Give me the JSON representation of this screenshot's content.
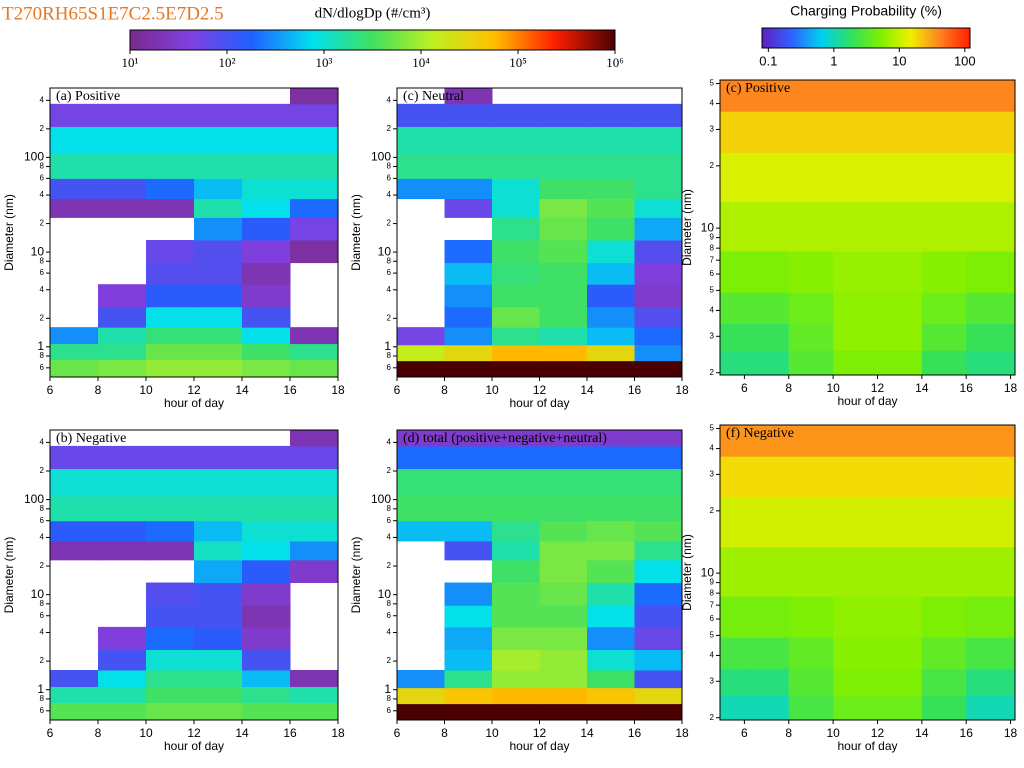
{
  "header": {
    "title": "T270RH65S1E7C2.5E7D2.5"
  },
  "chart_data": [
    {
      "type": "colorbar",
      "title": "dN/dlogDp (#/cm³)",
      "log": true,
      "zlim": [
        10,
        1000000
      ],
      "zticks": [
        {
          "value": 10,
          "label": "10¹"
        },
        {
          "value": 100,
          "label": "10²"
        },
        {
          "value": 1000,
          "label": "10³"
        },
        {
          "value": 10000,
          "label": "10⁴"
        },
        {
          "value": 100000,
          "label": "10⁵"
        },
        {
          "value": 1000000,
          "label": "10⁶"
        }
      ],
      "colors": [
        "#7a2a8a",
        "#8040e0",
        "#2060ff",
        "#00e0f0",
        "#40e060",
        "#c0f020",
        "#ffc000",
        "#ff2000",
        "#4a0000"
      ]
    },
    {
      "type": "colorbar",
      "title": "Charging Probability (%)",
      "log": true,
      "zlim": [
        0.08,
        120
      ],
      "zticks": [
        0.1,
        1,
        10,
        100
      ],
      "colors": [
        "#6020c0",
        "#3060ff",
        "#00d0f0",
        "#30e060",
        "#80f000",
        "#f0f000",
        "#ff8020",
        "#ff2000"
      ]
    },
    {
      "type": "heatmap",
      "label": "(a) Positive",
      "xlabel": "hour of day",
      "ylabel": "Diameter (nm)",
      "ylog": true,
      "xlim": [
        6,
        18
      ],
      "xticks": [
        6,
        8,
        10,
        12,
        14,
        16,
        18
      ],
      "ylim": [
        0.48,
        540
      ],
      "yticks": [
        {
          "value": 0.6,
          "label": "6"
        },
        {
          "value": 0.8,
          "label": "8"
        },
        1,
        2,
        4,
        6,
        8,
        10,
        {
          "value": 20,
          "label": "2"
        },
        {
          "value": 40,
          "label": "4"
        },
        {
          "value": 60,
          "label": "6"
        },
        {
          "value": 80,
          "label": "8"
        },
        100,
        {
          "value": 200,
          "label": "2"
        },
        {
          "value": 400,
          "label": "4"
        }
      ],
      "zlim": [
        10,
        1000000
      ],
      "colors": [
        "#7a2a8a",
        "#8040e0",
        "#2060ff",
        "#00e0f0",
        "#40e060",
        "#c0f020",
        "#ffc000",
        "#ff2000",
        "#4a0000"
      ],
      "x": [
        7,
        9,
        11,
        13,
        15,
        17
      ],
      "y": [
        0.6,
        0.9,
        1.3,
        2,
        3.5,
        6,
        10,
        18,
        30,
        45,
        80,
        150,
        300,
        450
      ],
      "z": [
        [
          5000,
          6000,
          8000,
          8000,
          6000,
          5000
        ],
        [
          2000,
          2000,
          5000,
          5000,
          3000,
          2000
        ],
        [
          300,
          1500,
          2500,
          2500,
          800,
          20
        ],
        [
          null,
          100,
          800,
          800,
          100,
          null
        ],
        [
          null,
          40,
          150,
          150,
          30,
          null
        ],
        [
          null,
          null,
          80,
          80,
          20,
          null
        ],
        [
          null,
          null,
          60,
          80,
          40,
          15
        ],
        [
          null,
          null,
          null,
          300,
          150,
          50
        ],
        [
          20,
          20,
          20,
          1500,
          800,
          200
        ],
        [
          100,
          100,
          200,
          500,
          1000,
          1000
        ],
        [
          1500,
          1500,
          1500,
          1500,
          1500,
          1500
        ],
        [
          800,
          800,
          800,
          800,
          800,
          800
        ],
        [
          50,
          50,
          50,
          50,
          50,
          50
        ],
        [
          null,
          null,
          null,
          null,
          null,
          15
        ]
      ]
    },
    {
      "type": "heatmap",
      "label": "(c) Neutral",
      "xlabel": "hour of day",
      "ylabel": "Diameter (nm)",
      "ylog": true,
      "xlim": [
        6,
        18
      ],
      "xticks": [
        6,
        8,
        10,
        12,
        14,
        16,
        18
      ],
      "ylim": [
        0.48,
        540
      ],
      "yticks": [
        {
          "value": 0.6,
          "label": "6"
        },
        {
          "value": 0.8,
          "label": "8"
        },
        1,
        2,
        4,
        6,
        8,
        10,
        {
          "value": 20,
          "label": "2"
        },
        {
          "value": 40,
          "label": "4"
        },
        {
          "value": 60,
          "label": "6"
        },
        {
          "value": 80,
          "label": "8"
        },
        100,
        {
          "value": 200,
          "label": "2"
        },
        {
          "value": 400,
          "label": "4"
        }
      ],
      "zlim": [
        10,
        1000000
      ],
      "colors": [
        "#7a2a8a",
        "#8040e0",
        "#2060ff",
        "#00e0f0",
        "#40e060",
        "#c0f020",
        "#ffc000",
        "#ff2000",
        "#4a0000"
      ],
      "x": [
        7,
        9,
        11,
        13,
        15,
        17
      ],
      "y": [
        0.6,
        0.85,
        1.3,
        2,
        3.5,
        6,
        10,
        18,
        30,
        45,
        80,
        150,
        300,
        450
      ],
      "z": [
        [
          1000000,
          1000000,
          1000000,
          1000000,
          1000000,
          1000000
        ],
        [
          15000,
          30000,
          60000,
          60000,
          30000,
          300
        ],
        [
          50,
          300,
          2000,
          1500,
          500,
          200
        ],
        [
          null,
          200,
          5000,
          3000,
          300,
          80
        ],
        [
          null,
          300,
          3000,
          3000,
          150,
          30
        ],
        [
          null,
          500,
          2500,
          3000,
          500,
          40
        ],
        [
          null,
          200,
          3000,
          4000,
          1000,
          80
        ],
        [
          null,
          null,
          2000,
          5000,
          3000,
          400
        ],
        [
          null,
          60,
          1000,
          6000,
          4000,
          1000
        ],
        [
          300,
          300,
          1000,
          3000,
          3000,
          2000
        ],
        [
          2000,
          2000,
          2000,
          2000,
          2000,
          2000
        ],
        [
          1500,
          1500,
          1500,
          1500,
          1500,
          1500
        ],
        [
          100,
          100,
          100,
          100,
          100,
          100
        ],
        [
          null,
          20,
          null,
          null,
          null,
          null
        ]
      ]
    },
    {
      "type": "heatmap",
      "label": "(b) Negative",
      "xlabel": "hour of day",
      "ylabel": "Diameter (nm)",
      "ylog": true,
      "xlim": [
        6,
        18
      ],
      "xticks": [
        6,
        8,
        10,
        12,
        14,
        16,
        18
      ],
      "ylim": [
        0.48,
        540
      ],
      "yticks": [
        {
          "value": 0.6,
          "label": "6"
        },
        {
          "value": 0.8,
          "label": "8"
        },
        1,
        2,
        4,
        6,
        8,
        10,
        {
          "value": 20,
          "label": "2"
        },
        {
          "value": 40,
          "label": "4"
        },
        {
          "value": 60,
          "label": "6"
        },
        {
          "value": 80,
          "label": "8"
        },
        100,
        {
          "value": 200,
          "label": "2"
        },
        {
          "value": 400,
          "label": "4"
        }
      ],
      "zlim": [
        10,
        1000000
      ],
      "colors": [
        "#7a2a8a",
        "#8040e0",
        "#2060ff",
        "#00e0f0",
        "#40e060",
        "#c0f020",
        "#ffc000",
        "#ff2000",
        "#4a0000"
      ],
      "x": [
        7,
        9,
        11,
        13,
        15,
        17
      ],
      "y": [
        0.6,
        0.9,
        1.3,
        2,
        3.5,
        6,
        10,
        18,
        30,
        45,
        80,
        150,
        300,
        450
      ],
      "z": [
        [
          4000,
          4000,
          5000,
          5000,
          4000,
          4000
        ],
        [
          1500,
          1500,
          3000,
          3000,
          2000,
          1500
        ],
        [
          100,
          800,
          2000,
          2000,
          500,
          20
        ],
        [
          null,
          100,
          1000,
          1000,
          100,
          null
        ],
        [
          null,
          40,
          200,
          150,
          30,
          null
        ],
        [
          null,
          null,
          100,
          100,
          20,
          null
        ],
        [
          null,
          null,
          80,
          100,
          30,
          null
        ],
        [
          null,
          null,
          null,
          400,
          150,
          30
        ],
        [
          20,
          20,
          20,
          1200,
          800,
          300
        ],
        [
          150,
          150,
          200,
          500,
          1000,
          1000
        ],
        [
          1500,
          1500,
          1500,
          1500,
          1500,
          1500
        ],
        [
          1000,
          1000,
          1000,
          1000,
          1000,
          1000
        ],
        [
          60,
          60,
          60,
          60,
          60,
          60
        ],
        [
          null,
          null,
          null,
          null,
          null,
          20
        ]
      ]
    },
    {
      "type": "heatmap",
      "label": "(d) total (positive+negative+neutral)",
      "xlabel": "hour of day",
      "ylabel": "Diameter (nm)",
      "ylog": true,
      "xlim": [
        6,
        18
      ],
      "xticks": [
        6,
        8,
        10,
        12,
        14,
        16,
        18
      ],
      "ylim": [
        0.48,
        540
      ],
      "yticks": [
        {
          "value": 0.6,
          "label": "6"
        },
        {
          "value": 0.8,
          "label": "8"
        },
        1,
        2,
        4,
        6,
        8,
        10,
        {
          "value": 20,
          "label": "2"
        },
        {
          "value": 40,
          "label": "4"
        },
        {
          "value": 60,
          "label": "6"
        },
        {
          "value": 80,
          "label": "8"
        },
        100,
        {
          "value": 200,
          "label": "2"
        },
        {
          "value": 400,
          "label": "4"
        }
      ],
      "zlim": [
        10,
        1000000
      ],
      "colors": [
        "#7a2a8a",
        "#8040e0",
        "#2060ff",
        "#00e0f0",
        "#40e060",
        "#c0f020",
        "#ffc000",
        "#ff2000",
        "#4a0000"
      ],
      "x": [
        7,
        9,
        11,
        13,
        15,
        17
      ],
      "y": [
        0.6,
        0.85,
        1.3,
        2,
        3.5,
        6,
        10,
        18,
        30,
        45,
        80,
        150,
        300,
        450
      ],
      "z": [
        [
          1000000,
          1000000,
          1000000,
          1000000,
          1000000,
          1000000
        ],
        [
          30000,
          50000,
          60000,
          60000,
          50000,
          30000
        ],
        [
          300,
          2000,
          8000,
          8000,
          3000,
          100
        ],
        [
          null,
          500,
          10000,
          8000,
          1000,
          500
        ],
        [
          null,
          400,
          6000,
          6000,
          300,
          60
        ],
        [
          null,
          800,
          4000,
          4000,
          800,
          100
        ],
        [
          null,
          300,
          4000,
          5000,
          1500,
          200
        ],
        [
          null,
          null,
          3000,
          6000,
          4000,
          800
        ],
        [
          null,
          100,
          1500,
          6000,
          6000,
          2000
        ],
        [
          500,
          500,
          2000,
          4000,
          5000,
          4000
        ],
        [
          3000,
          3000,
          3000,
          3000,
          3000,
          3000
        ],
        [
          2500,
          2500,
          2500,
          2500,
          2500,
          2500
        ],
        [
          200,
          200,
          200,
          200,
          200,
          200
        ],
        [
          30,
          30,
          30,
          30,
          30,
          30
        ]
      ]
    },
    {
      "type": "heatmap",
      "label": "(c) Positive",
      "xlabel": "hour of day",
      "ylabel": "Diameter (nm)",
      "ylog": true,
      "xlim": [
        4.9,
        18.2
      ],
      "xticks": [
        6,
        8,
        10,
        12,
        14,
        16,
        18
      ],
      "ylim": [
        1.95,
        52
      ],
      "yticks": [
        2,
        3,
        4,
        5,
        6,
        7,
        8,
        9,
        10,
        {
          "value": 20,
          "label": "2"
        },
        {
          "value": 30,
          "label": "3"
        },
        {
          "value": 40,
          "label": "4"
        },
        {
          "value": 50,
          "label": "5"
        }
      ],
      "zlim": [
        0.08,
        120
      ],
      "colors": [
        "#6020c0",
        "#3060ff",
        "#00d0f0",
        "#30e060",
        "#80f000",
        "#f0f000",
        "#ff8020",
        "#ff2000"
      ],
      "x": [
        5.5,
        7,
        9,
        11,
        13,
        15,
        17
      ],
      "y": [
        2.2,
        3,
        4,
        6,
        10,
        18,
        30,
        45
      ],
      "z": [
        [
          1.5,
          1.5,
          3,
          5,
          5,
          2,
          1.5
        ],
        [
          2,
          2,
          3.5,
          6,
          6,
          3,
          2
        ],
        [
          3,
          3,
          4,
          6,
          6,
          4,
          3
        ],
        [
          5,
          5,
          5.5,
          6.5,
          6.5,
          5.5,
          5
        ],
        [
          8,
          8,
          8,
          8,
          8,
          8,
          8
        ],
        [
          12,
          12,
          12,
          12,
          12,
          12,
          12
        ],
        [
          20,
          20,
          20,
          20,
          20,
          20,
          20
        ],
        [
          40,
          40,
          40,
          40,
          40,
          40,
          40
        ]
      ]
    },
    {
      "type": "heatmap",
      "label": "(f) Negative",
      "xlabel": "hour of day",
      "ylabel": "Diameter (nm)",
      "ylog": true,
      "xlim": [
        4.9,
        18.2
      ],
      "xticks": [
        6,
        8,
        10,
        12,
        14,
        16,
        18
      ],
      "ylim": [
        1.95,
        52
      ],
      "yticks": [
        2,
        3,
        4,
        5,
        6,
        7,
        8,
        9,
        10,
        {
          "value": 20,
          "label": "2"
        },
        {
          "value": 30,
          "label": "3"
        },
        {
          "value": 40,
          "label": "4"
        },
        {
          "value": 50,
          "label": "5"
        }
      ],
      "zlim": [
        0.08,
        120
      ],
      "colors": [
        "#6020c0",
        "#3060ff",
        "#00d0f0",
        "#30e060",
        "#80f000",
        "#f0f000",
        "#ff8020",
        "#ff2000"
      ],
      "x": [
        5.5,
        7,
        9,
        11,
        13,
        15,
        17
      ],
      "y": [
        2.2,
        3,
        4,
        6,
        10,
        18,
        30,
        45
      ],
      "z": [
        [
          1,
          1,
          2.5,
          4,
          4,
          2,
          1
        ],
        [
          1.5,
          1.5,
          3,
          5,
          5,
          2.5,
          1.5
        ],
        [
          2.5,
          2.5,
          3.5,
          5.5,
          5.5,
          3.5,
          2.5
        ],
        [
          4.5,
          4.5,
          5,
          6,
          6,
          5,
          4.5
        ],
        [
          7,
          7,
          7,
          7,
          7,
          7,
          7
        ],
        [
          11,
          11,
          11,
          11,
          11,
          11,
          11
        ],
        [
          18,
          18,
          18,
          18,
          18,
          18,
          18
        ],
        [
          35,
          35,
          35,
          35,
          35,
          35,
          35
        ]
      ]
    }
  ]
}
